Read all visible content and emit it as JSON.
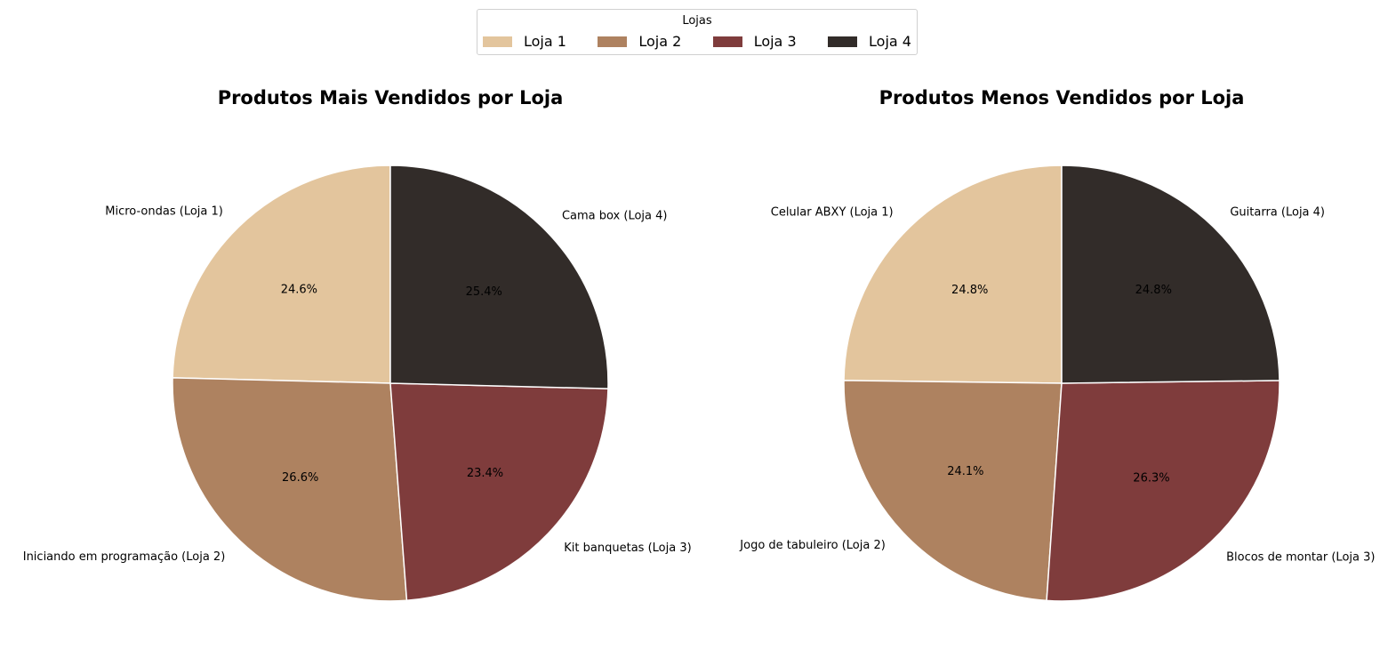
{
  "legend": {
    "title": "Lojas",
    "items": [
      {
        "label": "Loja 1",
        "color": "#E3C59D"
      },
      {
        "label": "Loja 2",
        "color": "#AE8260"
      },
      {
        "label": "Loja 3",
        "color": "#7F3C3C"
      },
      {
        "label": "Loja 4",
        "color": "#322C29"
      }
    ]
  },
  "chart_data": [
    {
      "type": "pie",
      "title": "Produtos Mais Vendidos por Loja",
      "start_angle": 90,
      "direction": "counterclockwise",
      "slices": [
        {
          "label": "Micro-ondas (Loja 1)",
          "value": 24.6,
          "pct_label": "24.6%",
          "color": "#E3C59D"
        },
        {
          "label": "Iniciando em programação (Loja 2)",
          "value": 26.6,
          "pct_label": "26.6%",
          "color": "#AE8260"
        },
        {
          "label": "Kit banquetas (Loja 3)",
          "value": 23.4,
          "pct_label": "23.4%",
          "color": "#7F3C3C"
        },
        {
          "label": "Cama box (Loja 4)",
          "value": 25.4,
          "pct_label": "25.4%",
          "color": "#322C29"
        }
      ]
    },
    {
      "type": "pie",
      "title": "Produtos Menos Vendidos por Loja",
      "start_angle": 90,
      "direction": "counterclockwise",
      "slices": [
        {
          "label": "Celular ABXY (Loja 1)",
          "value": 24.8,
          "pct_label": "24.8%",
          "color": "#E3C59D"
        },
        {
          "label": "Jogo de tabuleiro (Loja 2)",
          "value": 24.1,
          "pct_label": "24.1%",
          "color": "#AE8260"
        },
        {
          "label": "Blocos de montar (Loja 3)",
          "value": 26.3,
          "pct_label": "26.3%",
          "color": "#7F3C3C"
        },
        {
          "label": "Guitarra (Loja 4)",
          "value": 24.8,
          "pct_label": "24.8%",
          "color": "#322C29"
        }
      ]
    }
  ]
}
